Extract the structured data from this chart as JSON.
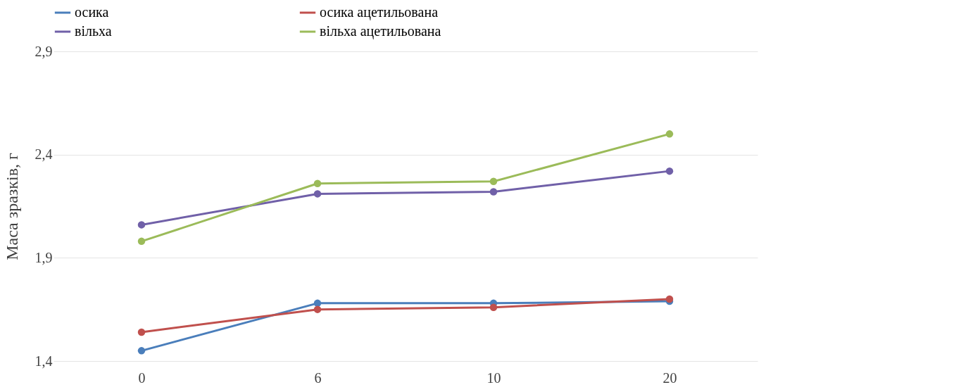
{
  "chart_data": {
    "type": "line",
    "ylabel": "Маса зразків, г",
    "categories": [
      "0",
      "6",
      "10",
      "20"
    ],
    "series": [
      {
        "name": "осика",
        "color": "#4a7ebb",
        "values": [
          1.45,
          1.68,
          1.68,
          1.69
        ]
      },
      {
        "name": "осика ацетильована",
        "color": "#c0504d",
        "values": [
          1.54,
          1.65,
          1.66,
          1.7
        ]
      },
      {
        "name": "вільха",
        "color": "#7060a8",
        "values": [
          2.06,
          2.21,
          2.22,
          2.32
        ]
      },
      {
        "name": "вільха ацетильована",
        "color": "#9bbb59",
        "values": [
          1.98,
          2.26,
          2.27,
          2.5
        ]
      }
    ],
    "ylim": [
      1.4,
      2.9
    ],
    "yticks": [
      {
        "value": 1.4,
        "label": "1,4"
      },
      {
        "value": 1.9,
        "label": "1,9"
      },
      {
        "value": 2.4,
        "label": "2,4"
      },
      {
        "value": 2.9,
        "label": "2,9"
      }
    ],
    "grid": "y",
    "legend": "top",
    "marker": "circle",
    "line_style": "solid"
  }
}
